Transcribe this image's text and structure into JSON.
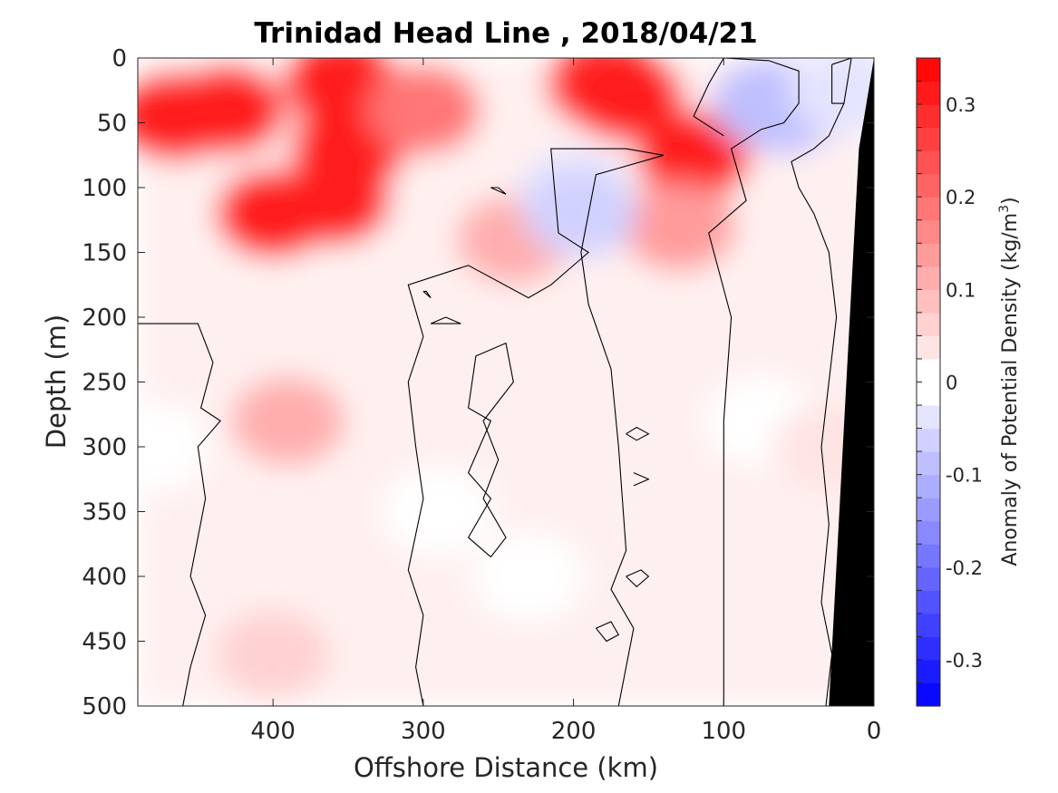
{
  "chart_data": {
    "type": "heatmap",
    "title": "Trinidad Head Line , 2018/04/21",
    "xlabel": "Offshore Distance (km)",
    "ylabel": "Depth (m)",
    "colorbar_label": "Anomaly of Potential Density (kg/m",
    "colorbar_label_superscript": "3",
    "colorbar_label_close": ")",
    "x_axis_reversed": true,
    "y_axis_reversed": true,
    "xlim": [
      0,
      490
    ],
    "ylim": [
      0,
      500
    ],
    "clim": [
      -0.35,
      0.35
    ],
    "color_levels": 28,
    "x_ticks": [
      400,
      300,
      200,
      100,
      0
    ],
    "x_tick_labels": [
      "400",
      "300",
      "200",
      "100",
      "0"
    ],
    "y_ticks": [
      0,
      50,
      100,
      150,
      200,
      250,
      300,
      350,
      400,
      450,
      500
    ],
    "y_tick_labels": [
      "0",
      "50",
      "100",
      "150",
      "200",
      "250",
      "300",
      "350",
      "400",
      "450",
      "500"
    ],
    "colorbar_ticks": [
      0.3,
      0.2,
      0.1,
      0,
      -0.1,
      -0.2,
      -0.3
    ],
    "colorbar_tick_labels": [
      "0.3",
      "0.2",
      "0.1",
      "0",
      "-0.1",
      "-0.2",
      "-0.3"
    ],
    "colors": {
      "negative": "#0000ff",
      "zero": "#ffffff",
      "positive": "#ff0000",
      "bathymetry": "#000000",
      "contour": "#000000"
    },
    "contour_level": 0,
    "bathymetry_polygon": [
      [
        0,
        0
      ],
      [
        0,
        500
      ],
      [
        30,
        500
      ],
      [
        10,
        70
      ]
    ],
    "anomaly_field_samples": [
      {
        "x": 465,
        "y": 45,
        "v": 0.32
      },
      {
        "x": 430,
        "y": 40,
        "v": 0.3
      },
      {
        "x": 400,
        "y": 120,
        "v": 0.3
      },
      {
        "x": 360,
        "y": 110,
        "v": 0.32
      },
      {
        "x": 355,
        "y": 20,
        "v": 0.32
      },
      {
        "x": 350,
        "y": 70,
        "v": 0.3
      },
      {
        "x": 390,
        "y": 280,
        "v": 0.12
      },
      {
        "x": 400,
        "y": 460,
        "v": 0.06
      },
      {
        "x": 300,
        "y": 40,
        "v": 0.18
      },
      {
        "x": 240,
        "y": 140,
        "v": 0.1
      },
      {
        "x": 180,
        "y": 20,
        "v": 0.28
      },
      {
        "x": 165,
        "y": 30,
        "v": 0.3
      },
      {
        "x": 120,
        "y": 75,
        "v": 0.32
      },
      {
        "x": 130,
        "y": 130,
        "v": 0.14
      },
      {
        "x": 200,
        "y": 105,
        "v": -0.04
      },
      {
        "x": 195,
        "y": 120,
        "v": -0.06
      },
      {
        "x": 70,
        "y": 35,
        "v": -0.08
      },
      {
        "x": 60,
        "y": 40,
        "v": -0.09
      },
      {
        "x": 20,
        "y": 25,
        "v": -0.05
      },
      {
        "x": 75,
        "y": 280,
        "v": -0.02
      },
      {
        "x": 290,
        "y": 350,
        "v": 0.0
      },
      {
        "x": 230,
        "y": 400,
        "v": 0.0
      },
      {
        "x": 480,
        "y": 300,
        "v": 0.0
      },
      {
        "x": 30,
        "y": 300,
        "v": 0.03
      }
    ]
  }
}
